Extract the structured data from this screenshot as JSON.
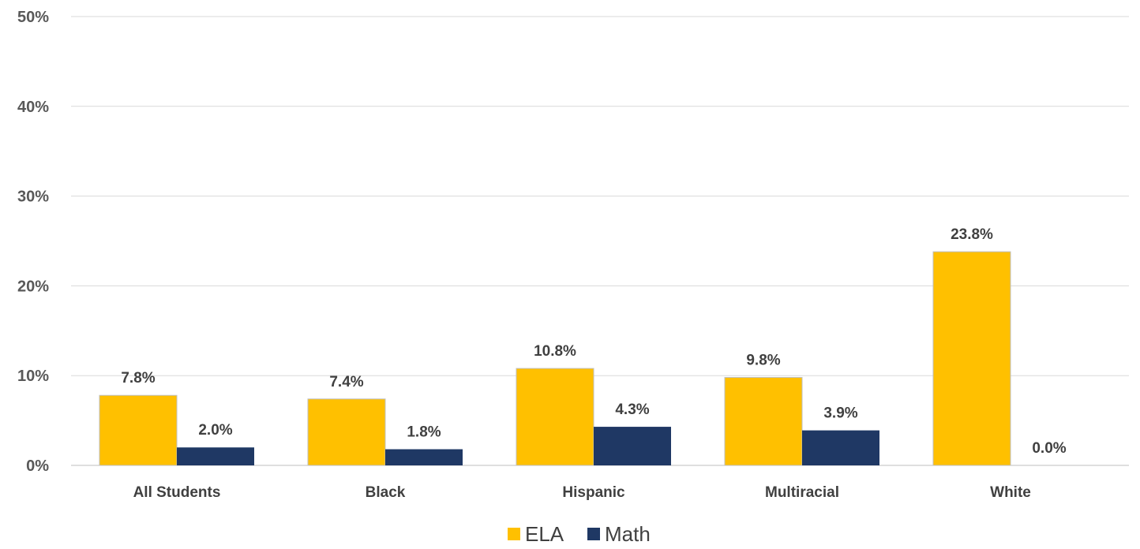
{
  "chart_data": {
    "type": "bar",
    "categories": [
      "All Students",
      "Black",
      "Hispanic",
      "Multiracial",
      "White"
    ],
    "series": [
      {
        "name": "ELA",
        "color": "#FFC000",
        "values": [
          7.8,
          7.4,
          10.8,
          9.8,
          23.8
        ],
        "labels": [
          "7.8%",
          "7.4%",
          "10.8%",
          "9.8%",
          "23.8%"
        ]
      },
      {
        "name": "Math",
        "color": "#1F3864",
        "values": [
          2.0,
          1.8,
          4.3,
          3.9,
          0.0
        ],
        "labels": [
          "2.0%",
          "1.8%",
          "4.3%",
          "3.9%",
          "0.0%"
        ]
      }
    ],
    "ylim": [
      0,
      50
    ],
    "yticks": [
      0,
      10,
      20,
      30,
      40,
      50
    ],
    "ytick_labels": [
      "0%",
      "10%",
      "20%",
      "30%",
      "40%",
      "50%"
    ],
    "grid": true,
    "legend_position": "bottom"
  }
}
